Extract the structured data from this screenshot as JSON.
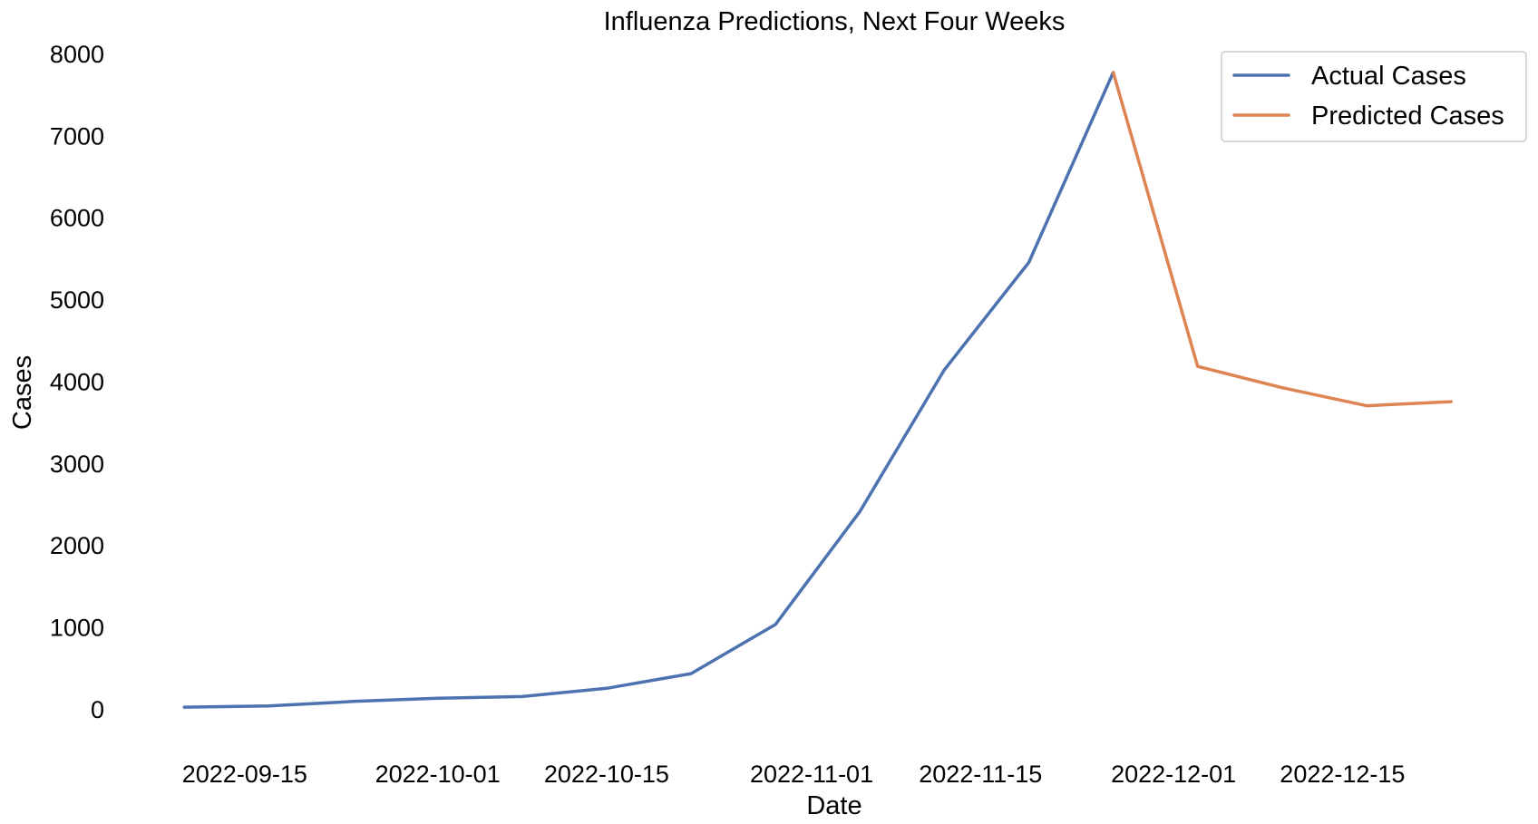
{
  "chart_data": {
    "type": "line",
    "title": "Influenza Predictions, Next Four Weeks",
    "xlabel": "Date",
    "ylabel": "Cases",
    "ylim": [
      -500,
      8000
    ],
    "xlim": [
      "2022-09-09",
      "2022-12-27"
    ],
    "yticks": [
      0,
      1000,
      2000,
      3000,
      4000,
      5000,
      6000,
      7000,
      8000
    ],
    "xticks": [
      "2022-09-15",
      "2022-10-01",
      "2022-10-15",
      "2022-11-01",
      "2022-11-15",
      "2022-12-01",
      "2022-12-15"
    ],
    "grid": false,
    "legend_position": "top-right",
    "series": [
      {
        "name": "Actual Cases",
        "color": "#4c72b0",
        "x": [
          "2022-09-10",
          "2022-09-17",
          "2022-09-24",
          "2022-10-01",
          "2022-10-08",
          "2022-10-15",
          "2022-10-22",
          "2022-10-29",
          "2022-11-05",
          "2022-11-12",
          "2022-11-19",
          "2022-11-26"
        ],
        "values": [
          30,
          45,
          100,
          140,
          160,
          260,
          440,
          1040,
          2420,
          4150,
          5460,
          7780
        ]
      },
      {
        "name": "Predicted Cases",
        "color": "#dd8452",
        "x": [
          "2022-11-26",
          "2022-12-03",
          "2022-12-10",
          "2022-12-17",
          "2022-12-24"
        ],
        "values": [
          7780,
          4190,
          3930,
          3710,
          3760
        ]
      }
    ]
  }
}
